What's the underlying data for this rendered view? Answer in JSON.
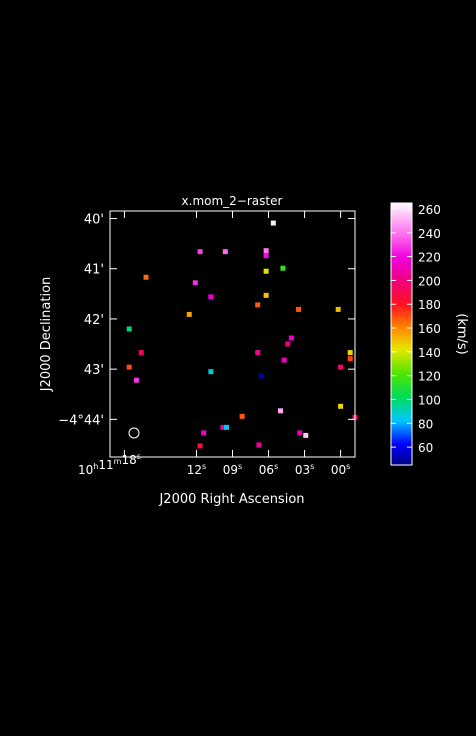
{
  "chart_data": {
    "type": "scatter",
    "title": "x.mom_2−raster",
    "xlabel": "J2000 Right Ascension",
    "ylabel": "J2000 Declination",
    "x_unit": "seconds of time after 10h11m",
    "y_unit": "arcminutes south of -4d40m",
    "xlim": [
      19.2,
      -1.2
    ],
    "ylim": [
      0.0,
      4.9
    ],
    "x_ticks": [
      {
        "value": 18,
        "label": "10h11m18s"
      },
      {
        "value": 12,
        "label": "12s"
      },
      {
        "value": 9,
        "label": "09s"
      },
      {
        "value": 6,
        "label": "06s"
      },
      {
        "value": 3,
        "label": "03s"
      },
      {
        "value": 0,
        "label": "00s"
      }
    ],
    "y_ticks": [
      {
        "value": 0.15,
        "label": "40'"
      },
      {
        "value": 1.15,
        "label": "41'"
      },
      {
        "value": 2.15,
        "label": "42'"
      },
      {
        "value": 3.15,
        "label": "43'"
      },
      {
        "value": 4.15,
        "label": "−4°44'"
      }
    ],
    "colorbar": {
      "label": "(km/s)",
      "range": [
        45,
        265
      ],
      "ticks": [
        60,
        80,
        100,
        120,
        140,
        160,
        180,
        200,
        220,
        240,
        260
      ]
    },
    "points": [
      {
        "ra": 5.6,
        "dec": 0.24,
        "value": 262
      },
      {
        "ra": 11.7,
        "dec": 0.81,
        "value": 230
      },
      {
        "ra": 9.6,
        "dec": 0.81,
        "value": 238
      },
      {
        "ra": 6.2,
        "dec": 0.79,
        "value": 240
      },
      {
        "ra": 6.2,
        "dec": 0.89,
        "value": 222
      },
      {
        "ra": 4.8,
        "dec": 1.14,
        "value": 115
      },
      {
        "ra": 6.2,
        "dec": 1.2,
        "value": 142
      },
      {
        "ra": 16.2,
        "dec": 1.32,
        "value": 165
      },
      {
        "ra": 12.1,
        "dec": 1.43,
        "value": 227
      },
      {
        "ra": 10.8,
        "dec": 1.71,
        "value": 218
      },
      {
        "ra": 6.2,
        "dec": 1.68,
        "value": 148
      },
      {
        "ra": 6.9,
        "dec": 1.87,
        "value": 168
      },
      {
        "ra": 3.5,
        "dec": 1.96,
        "value": 168
      },
      {
        "ra": 0.2,
        "dec": 1.96,
        "value": 150
      },
      {
        "ra": 12.6,
        "dec": 2.06,
        "value": 155
      },
      {
        "ra": 17.6,
        "dec": 2.35,
        "value": 100
      },
      {
        "ra": 4.1,
        "dec": 2.53,
        "value": 215
      },
      {
        "ra": 4.4,
        "dec": 2.65,
        "value": 200
      },
      {
        "ra": 16.6,
        "dec": 2.82,
        "value": 192
      },
      {
        "ra": 6.9,
        "dec": 2.82,
        "value": 205
      },
      {
        "ra": 4.7,
        "dec": 2.97,
        "value": 212
      },
      {
        "ra": -0.8,
        "dec": 2.82,
        "value": 145
      },
      {
        "ra": -0.8,
        "dec": 2.94,
        "value": 172
      },
      {
        "ra": 0.0,
        "dec": 3.11,
        "value": 195
      },
      {
        "ra": 17.6,
        "dec": 3.11,
        "value": 170
      },
      {
        "ra": 10.8,
        "dec": 3.2,
        "value": 88
      },
      {
        "ra": 6.6,
        "dec": 3.29,
        "value": 52
      },
      {
        "ra": 17.0,
        "dec": 3.37,
        "value": 228
      },
      {
        "ra": 0.0,
        "dec": 3.89,
        "value": 145
      },
      {
        "ra": 5.0,
        "dec": 3.98,
        "value": 250
      },
      {
        "ra": 8.2,
        "dec": 4.09,
        "value": 168
      },
      {
        "ra": -1.2,
        "dec": 4.11,
        "value": 195
      },
      {
        "ra": 9.8,
        "dec": 4.31,
        "value": 205
      },
      {
        "ra": 9.5,
        "dec": 4.31,
        "value": 82
      },
      {
        "ra": 11.4,
        "dec": 4.42,
        "value": 215
      },
      {
        "ra": 3.4,
        "dec": 4.42,
        "value": 210
      },
      {
        "ra": 2.9,
        "dec": 4.47,
        "value": 255
      },
      {
        "ra": 11.7,
        "dec": 4.68,
        "value": 188
      },
      {
        "ra": 6.8,
        "dec": 4.66,
        "value": 205
      }
    ]
  }
}
